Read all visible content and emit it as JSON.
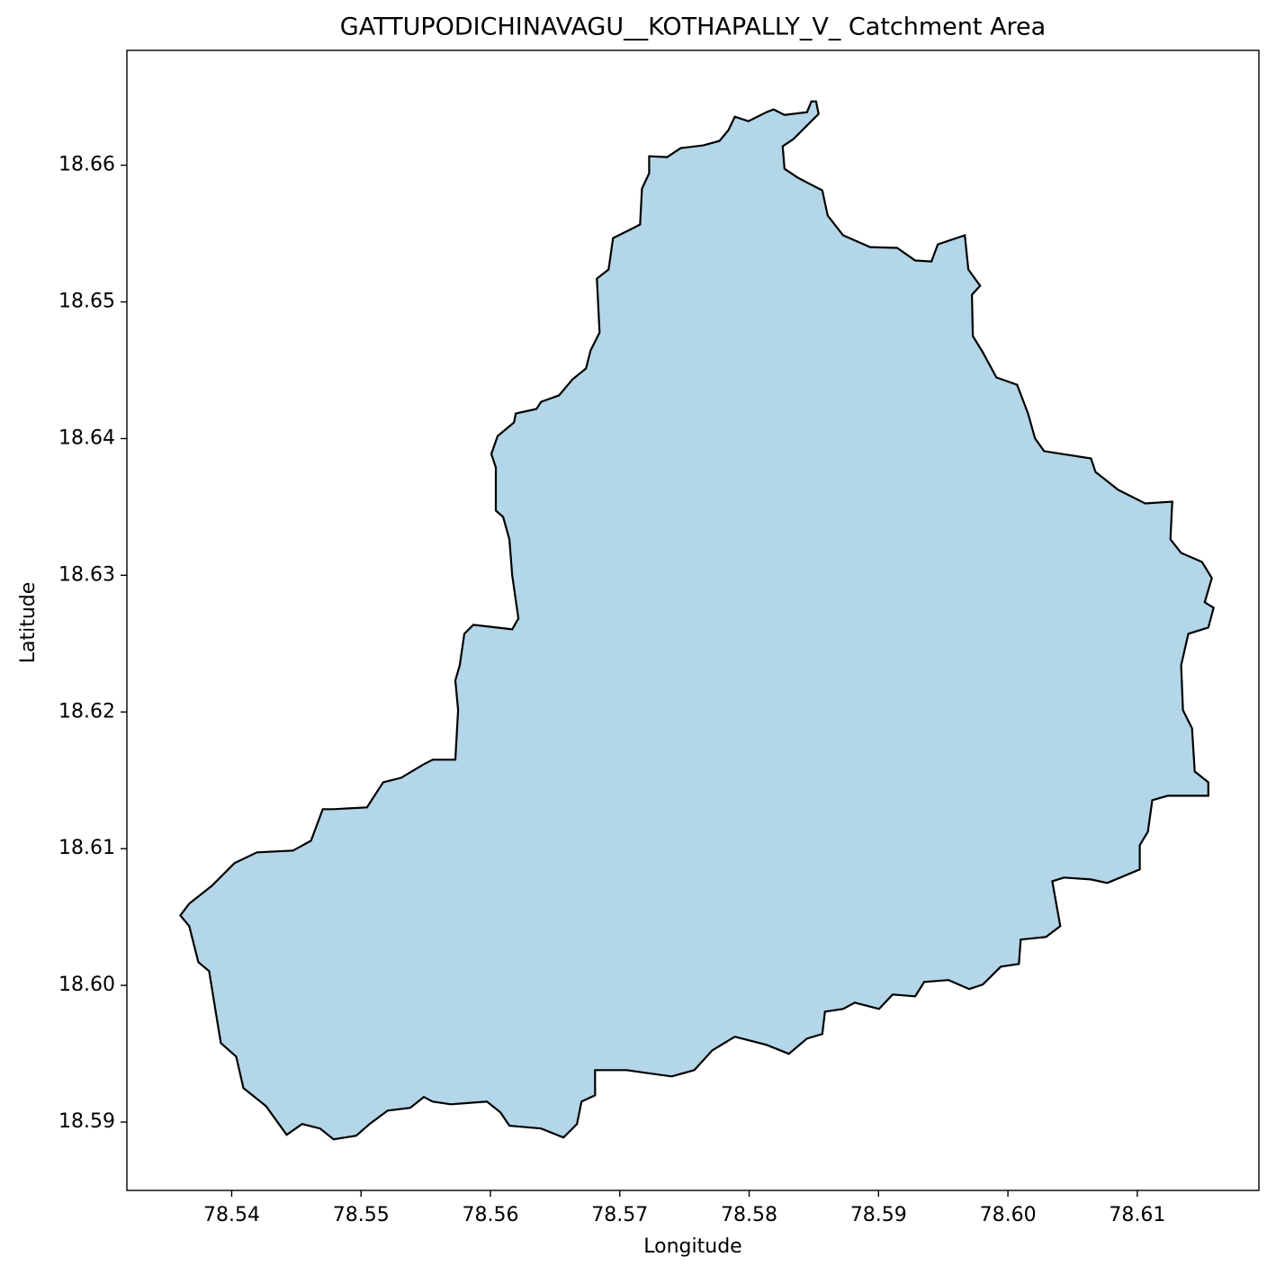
{
  "chart_data": {
    "type": "polygon",
    "title": "GATTUPODICHINAVAGU__KOTHAPALLY_V_ Catchment Area",
    "x_label": "Longitude",
    "y_label": "Latitude",
    "xlim": [
      78.5319,
      78.6194
    ],
    "ylim": [
      18.585,
      18.6684
    ],
    "xticks": [
      78.54,
      78.55,
      78.56,
      78.57,
      78.58,
      78.59,
      {
        "value": 78.6,
        "label": "78.60"
      },
      78.61
    ],
    "yticks": [
      {
        "value": 18.59,
        "label": "18.59"
      },
      {
        "value": 18.6,
        "label": "18.60"
      },
      18.61,
      18.62,
      18.63,
      18.64,
      18.65,
      18.66
    ],
    "fill": "#b3d6e8",
    "edgecolor": "#000000",
    "polygon": {
      "x": [
        78.58517,
        78.58537,
        78.58342,
        78.58259,
        78.58273,
        78.58377,
        78.58565,
        78.58607,
        78.58726,
        78.58935,
        78.59144,
        78.59283,
        78.59409,
        78.59458,
        78.59667,
        78.59694,
        78.59785,
        78.59722,
        78.59729,
        78.59806,
        78.59911,
        78.60071,
        78.60155,
        78.6021,
        78.6028,
        78.60642,
        78.60677,
        78.60852,
        78.61061,
        78.6127,
        78.61256,
        78.61339,
        78.615,
        78.61576,
        78.61521,
        78.6159,
        78.61549,
        78.61395,
        78.61339,
        78.61353,
        78.61423,
        78.61444,
        78.61549,
        78.61549,
        78.61235,
        78.61116,
        78.61082,
        78.61019,
        78.61019,
        78.60768,
        78.60642,
        78.60433,
        78.60343,
        78.60405,
        78.60294,
        78.60099,
        78.60085,
        78.59945,
        78.59806,
        78.59701,
        78.59541,
        78.59353,
        78.59283,
        78.59109,
        78.59004,
        78.58816,
        78.58726,
        78.58586,
        78.58565,
        78.58447,
        78.58307,
        78.58133,
        78.57889,
        78.57715,
        78.57576,
        78.57401,
        78.57192,
        78.57053,
        78.56809,
        78.56809,
        78.56704,
        78.56669,
        78.56565,
        78.56391,
        78.56147,
        78.56077,
        78.55973,
        78.55694,
        78.55554,
        78.55485,
        78.5538,
        78.55206,
        78.55066,
        78.54962,
        78.54788,
        78.54683,
        78.54544,
        78.54425,
        78.54265,
        78.54091,
        78.54035,
        78.53916,
        78.53882,
        78.53826,
        78.53742,
        78.53672,
        78.53603,
        78.53672,
        78.53847,
        78.54021,
        78.54195,
        78.54474,
        78.54613,
        78.54704,
        78.54788,
        78.55046,
        78.55171,
        78.5531,
        78.55485,
        78.55554,
        78.55729,
        78.5575,
        78.55729,
        78.55763,
        78.55798,
        78.55868,
        78.56168,
        78.56216,
        78.56168,
        78.56147,
        78.56098,
        78.56042,
        78.56042,
        78.56007,
        78.56056,
        78.56182,
        78.56196,
        78.56356,
        78.56391,
        78.5653,
        78.56635,
        78.56739,
        78.56774,
        78.56844,
        78.56823,
        78.56913,
        78.56948,
        78.57088,
        78.57157,
        78.57171,
        78.57227,
        78.57227,
        78.57366,
        78.57471,
        78.57645,
        78.57771,
        78.5784,
        78.57889,
        78.57994,
        78.58133,
        78.58189,
        78.58273,
        78.58447,
        78.58481
      ],
      "y": [
        18.66467,
        18.66375,
        18.66191,
        18.66138,
        18.65974,
        18.65908,
        18.65816,
        18.65632,
        18.65487,
        18.65401,
        18.65395,
        18.65303,
        18.65296,
        18.65421,
        18.65487,
        18.65237,
        18.65118,
        18.65052,
        18.6475,
        18.64631,
        18.64447,
        18.64394,
        18.64184,
        18.64,
        18.63908,
        18.63855,
        18.63756,
        18.63625,
        18.63526,
        18.63539,
        18.63263,
        18.63164,
        18.63098,
        18.6298,
        18.62802,
        18.62763,
        18.62618,
        18.62572,
        18.62342,
        18.62013,
        18.61881,
        18.61565,
        18.61486,
        18.61387,
        18.61387,
        18.61355,
        18.61124,
        18.61026,
        18.60848,
        18.60749,
        18.60775,
        18.60789,
        18.60762,
        18.60433,
        18.60354,
        18.60335,
        18.60157,
        18.60137,
        18.60006,
        18.59973,
        18.60039,
        18.60025,
        18.5992,
        18.59933,
        18.59828,
        18.59874,
        18.59828,
        18.59808,
        18.59644,
        18.59611,
        18.59499,
        18.59565,
        18.59624,
        18.59525,
        18.5938,
        18.59334,
        18.59361,
        18.5938,
        18.5938,
        18.59196,
        18.5915,
        18.58986,
        18.58887,
        18.58953,
        18.58973,
        18.59071,
        18.5915,
        18.5913,
        18.5915,
        18.59183,
        18.59104,
        18.59084,
        18.58986,
        18.589,
        18.58874,
        18.58953,
        18.58986,
        18.58907,
        18.59117,
        18.59249,
        18.59479,
        18.59578,
        18.59775,
        18.60104,
        18.6017,
        18.60433,
        18.60512,
        18.60598,
        18.60729,
        18.60894,
        18.60973,
        18.60986,
        18.61058,
        18.61289,
        18.61289,
        18.61302,
        18.61486,
        18.61519,
        18.61618,
        18.61651,
        18.61651,
        18.62013,
        18.6223,
        18.62342,
        18.62572,
        18.62638,
        18.62605,
        18.62684,
        18.63,
        18.63263,
        18.63427,
        18.63473,
        18.63789,
        18.63888,
        18.64019,
        18.64118,
        18.64184,
        18.64217,
        18.64269,
        18.64316,
        18.64434,
        18.64513,
        18.64645,
        18.64776,
        18.65171,
        18.65237,
        18.65467,
        18.65533,
        18.65566,
        18.65829,
        18.65941,
        18.66066,
        18.66059,
        18.66125,
        18.66145,
        18.66178,
        18.66257,
        18.66355,
        18.66322,
        18.66388,
        18.66408,
        18.66368,
        18.66388,
        18.66467
      ]
    }
  }
}
